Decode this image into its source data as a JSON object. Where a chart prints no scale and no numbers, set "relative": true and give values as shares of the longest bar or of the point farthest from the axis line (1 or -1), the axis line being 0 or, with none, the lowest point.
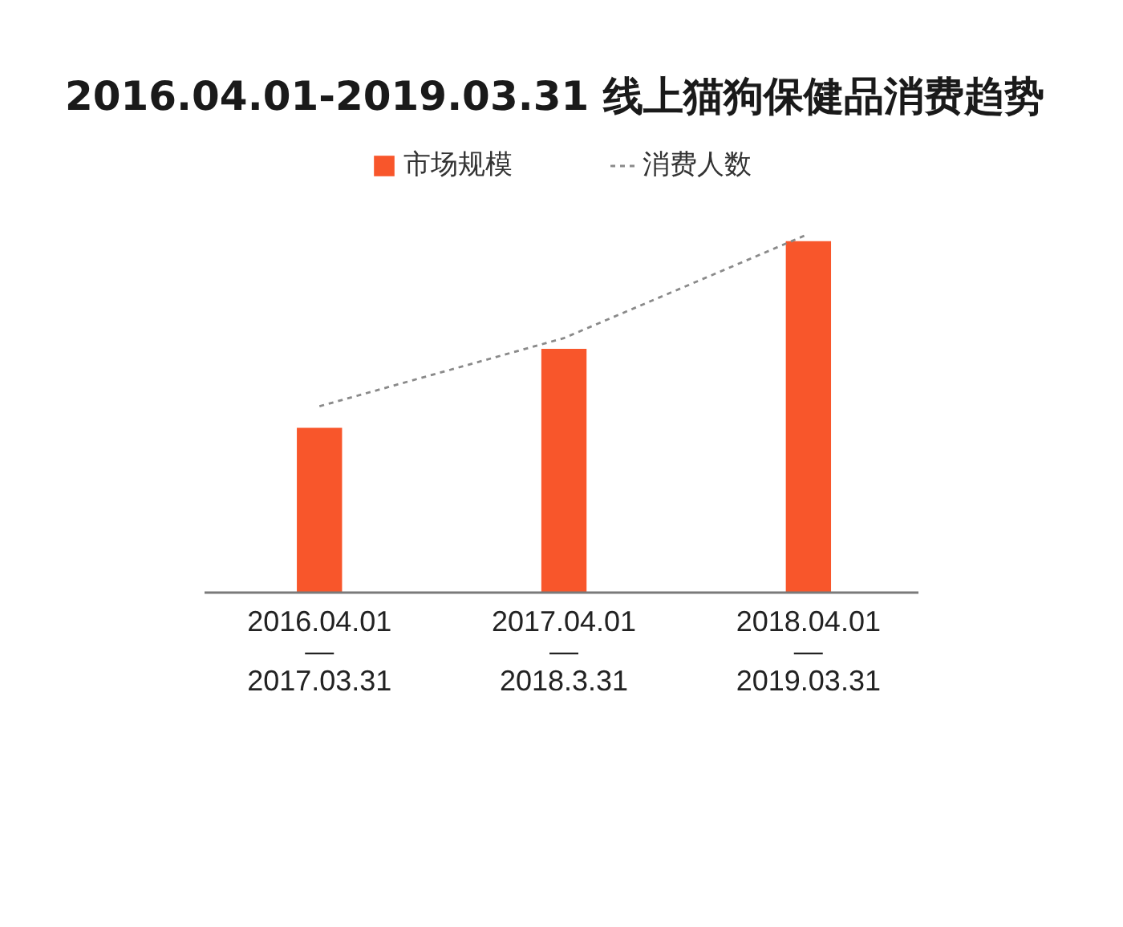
{
  "chart_data": {
    "type": "bar",
    "title": "2016.04.01-2019.03.31  线上猫狗保健品消费趋势",
    "categories": [
      "2016.04.01\n—\n2017.03.31",
      "2017.04.01\n—\n2018.3.31",
      "2018.04.01\n—\n2019.03.31"
    ],
    "relative": true,
    "series": [
      {
        "name": "市场规模",
        "color": "#f8562b",
        "values": [
          0.46,
          0.68,
          0.98
        ]
      },
      {
        "name": "消费人数",
        "type": "line",
        "color": "#8a8a8a",
        "values": [
          0.52,
          0.71,
          1.0
        ]
      }
    ],
    "line_style": "dashed",
    "legend": "top"
  }
}
